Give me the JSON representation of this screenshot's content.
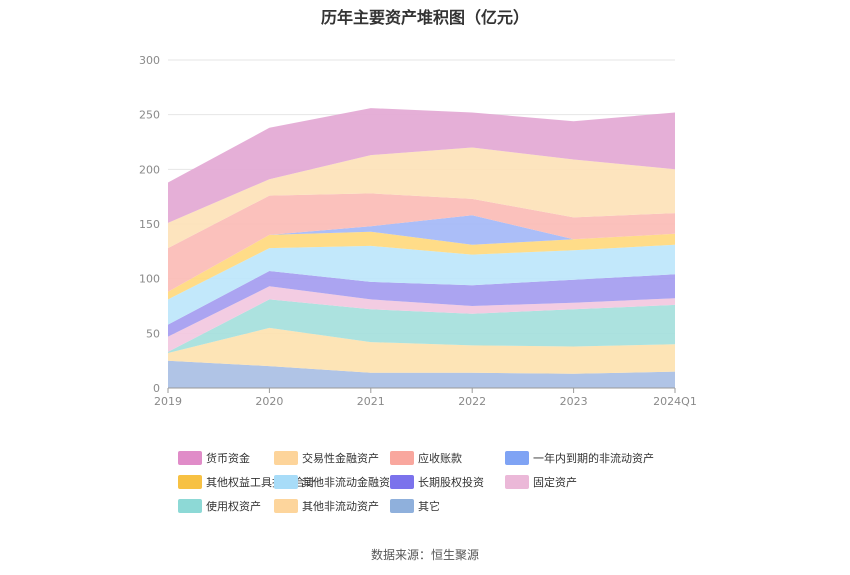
{
  "chart_data": {
    "type": "area",
    "title": "历年主要资产堆积图（亿元）",
    "categories": [
      "2019",
      "2020",
      "2021",
      "2022",
      "2023",
      "2024Q1"
    ],
    "y_ticks": [
      "0",
      "50",
      "100",
      "150",
      "200",
      "250",
      "300"
    ],
    "ylim": [
      0,
      300
    ],
    "grid": true,
    "legend_position": "bottom",
    "stacked": true,
    "series": [
      {
        "name": "其它",
        "color": "#a9bfe4",
        "values": [
          25,
          20,
          14,
          14,
          13,
          15
        ]
      },
      {
        "name": "其他非流动资产",
        "color": "#fde2b0",
        "values": [
          7,
          35,
          28,
          25,
          25,
          25
        ]
      },
      {
        "name": "使用权资产",
        "color": "#a5e0dc",
        "values": [
          1,
          26,
          30,
          29,
          34,
          36
        ]
      },
      {
        "name": "固定资产",
        "color": "#f2c8e0",
        "values": [
          14,
          12,
          9,
          7,
          6,
          6
        ]
      },
      {
        "name": "长期股权投资",
        "color": "#a49cf0",
        "values": [
          11,
          14,
          16,
          19,
          21,
          22
        ]
      },
      {
        "name": "其他非流动金融资产",
        "color": "#bde6fb",
        "values": [
          23,
          21,
          33,
          28,
          27,
          27
        ]
      },
      {
        "name": "其他权益工具投资合计",
        "color": "#ffd97e",
        "values": [
          7,
          12,
          13,
          9,
          10,
          10
        ]
      },
      {
        "name": "一年内到期的非流动资产",
        "color": "#a4b8f7",
        "values": [
          0,
          0,
          5,
          27,
          0,
          0
        ]
      },
      {
        "name": "应收账款",
        "color": "#fbbcb6",
        "values": [
          40,
          36,
          30,
          15,
          20,
          19
        ]
      },
      {
        "name": "交易性金融资产",
        "color": "#fde2b8",
        "values": [
          23,
          15,
          35,
          47,
          53,
          40
        ]
      },
      {
        "name": "货币资金",
        "color": "#e3a8d4",
        "values": [
          37,
          47,
          43,
          32,
          35,
          52
        ]
      }
    ],
    "legend": [
      "货币资金",
      "交易性金融资产",
      "应收账款",
      "一年内到期的非流动资产",
      "其他权益工具投资合计",
      "其他非流动金融资产",
      "长期股权投资",
      "固定资产",
      "使用权资产",
      "其他非流动资产",
      "其它"
    ],
    "legend_swatch_colors": [
      "#e08cc8",
      "#fdd49a",
      "#f9a79e",
      "#7fa3f4",
      "#f7c143",
      "#a8dcf8",
      "#7b72ec",
      "#ebb8d8",
      "#8dd9d6",
      "#fdd59c",
      "#8fb0dc"
    ],
    "source": "数据来源：恒生聚源"
  }
}
